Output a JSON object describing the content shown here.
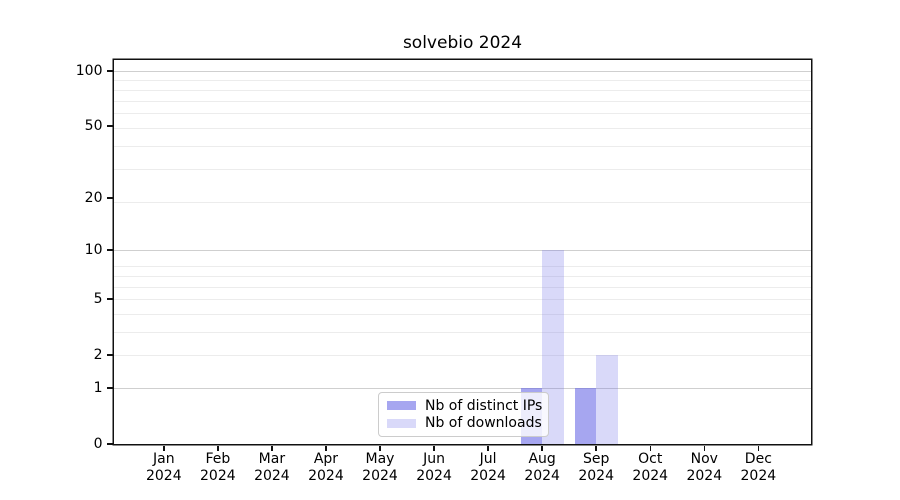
{
  "chart_data": {
    "type": "bar",
    "title": "solvebio 2024",
    "categories": [
      "Jan 2024",
      "Feb 2024",
      "Mar 2024",
      "Apr 2024",
      "May 2024",
      "Jun 2024",
      "Jul 2024",
      "Aug 2024",
      "Sep 2024",
      "Oct 2024",
      "Nov 2024",
      "Dec 2024"
    ],
    "x_axis": {
      "months": [
        "Jan",
        "Feb",
        "Mar",
        "Apr",
        "May",
        "Jun",
        "Jul",
        "Aug",
        "Sep",
        "Oct",
        "Nov",
        "Dec"
      ],
      "year": "2024"
    },
    "series": [
      {
        "name": "Nb of distinct IPs",
        "color": "rgba(102,102,230,0.58)",
        "values": [
          0,
          0,
          0,
          0,
          0,
          0,
          0,
          1,
          1,
          0,
          0,
          0
        ]
      },
      {
        "name": "Nb of downloads",
        "color": "rgba(102,102,230,0.25)",
        "values": [
          0,
          0,
          0,
          0,
          0,
          0,
          0,
          10,
          2,
          0,
          0,
          0
        ]
      }
    ],
    "y_axis": {
      "scale": "log1p",
      "tick_values": [
        0,
        1,
        2,
        5,
        10,
        20,
        50,
        100
      ],
      "tick_labels": [
        "0",
        "1",
        "2",
        "5",
        "10",
        "20",
        "50",
        "100"
      ],
      "major_grid_values": [
        1,
        10,
        100
      ],
      "minor_grid_values": [
        1,
        2,
        3,
        4,
        5,
        6,
        7,
        8,
        19,
        29,
        39,
        49,
        59,
        69,
        79,
        89
      ],
      "ylim": [
        0,
        114.7
      ],
      "grid": true
    },
    "legend": {
      "position": "lower center",
      "entries": [
        "Nb of distinct IPs",
        "Nb of downloads"
      ]
    },
    "colors": {
      "bar_base": "#6666e6",
      "major_grid": "#cfcfcf",
      "minor_grid": "#ececec",
      "spine": "#111111",
      "text": "#000000"
    }
  }
}
